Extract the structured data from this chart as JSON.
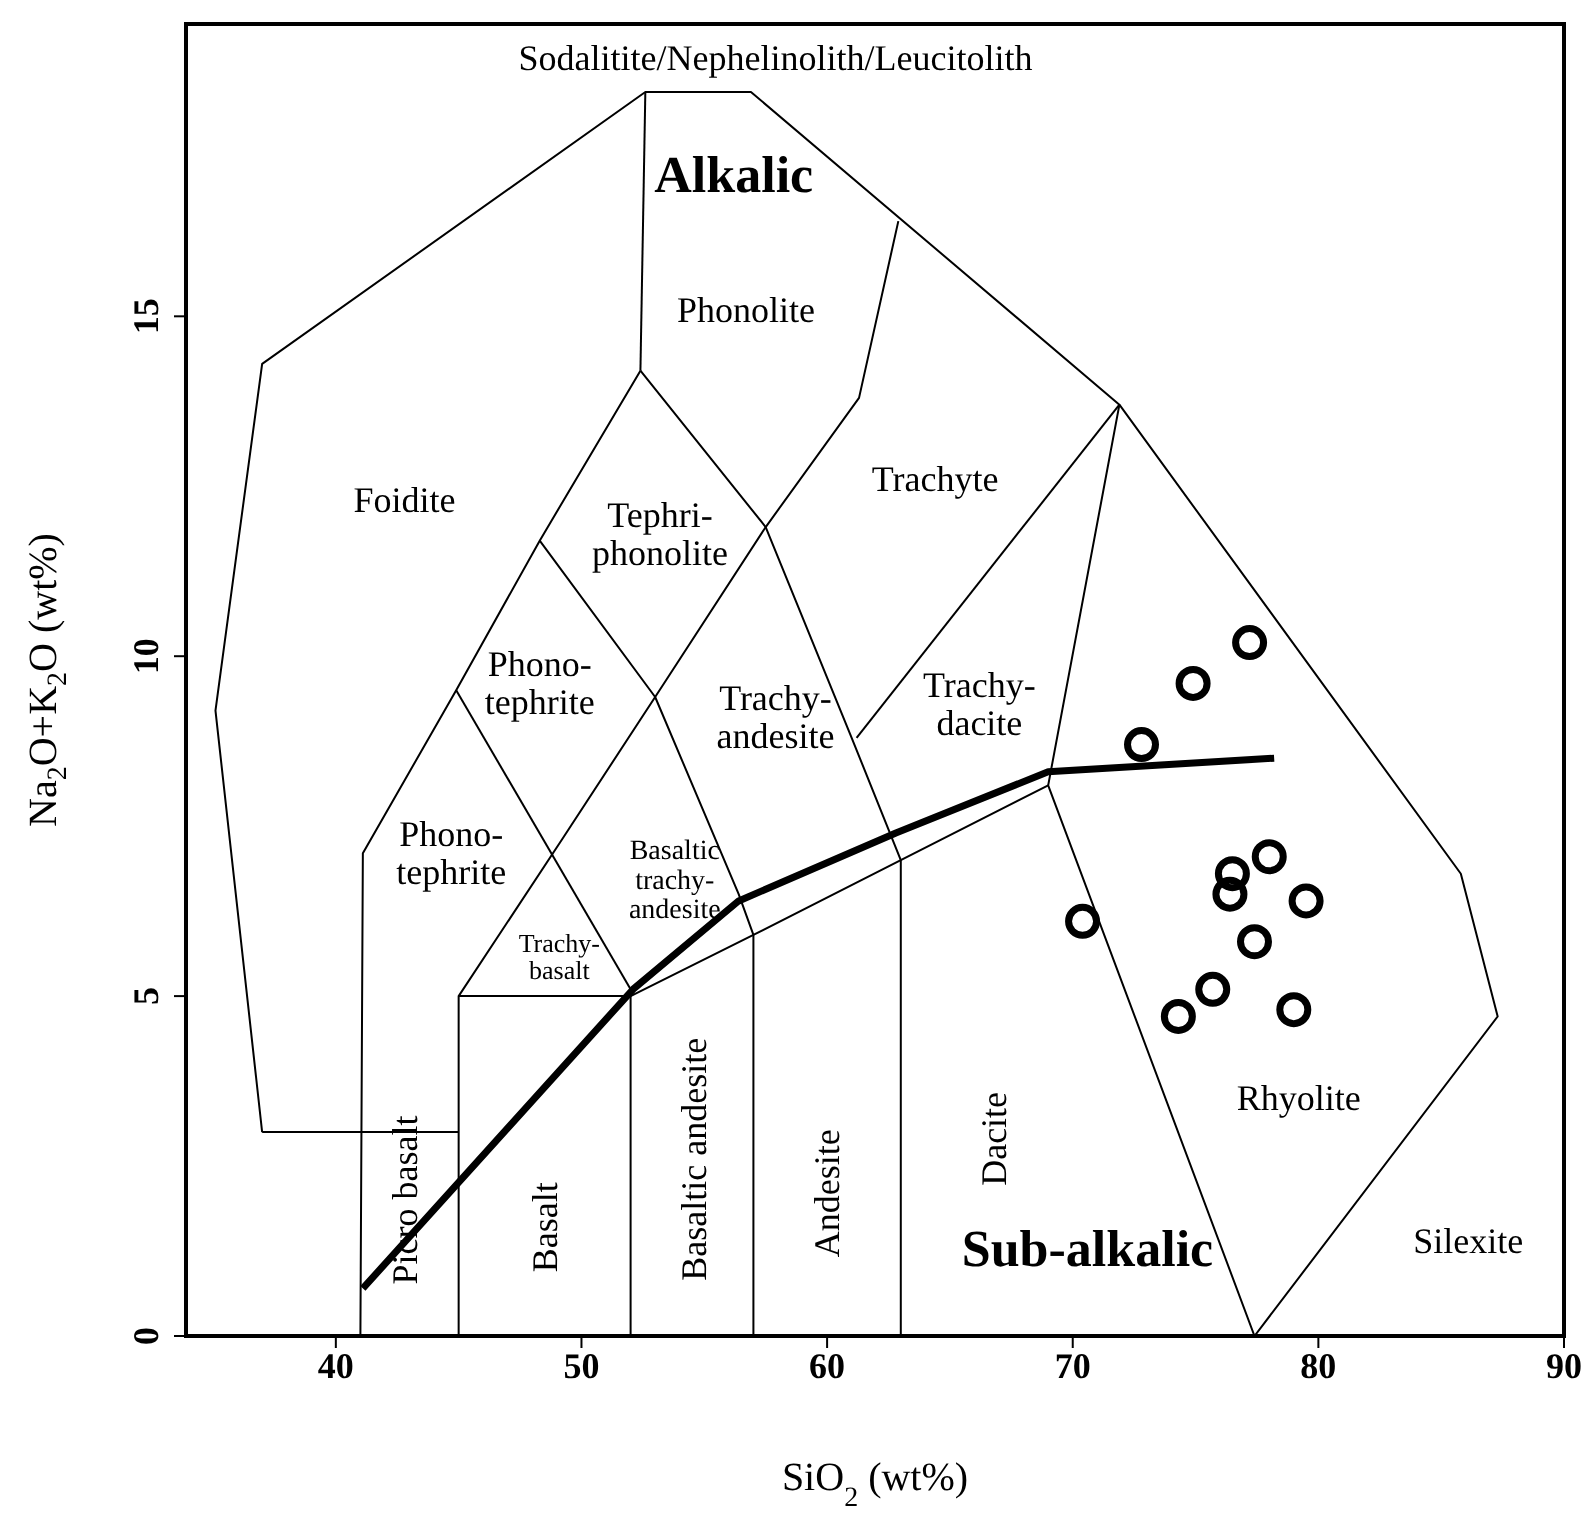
{
  "chart_data": {
    "type": "scatter",
    "xlabel": "SiO$_{2}$ (wt%)",
    "ylabel": "Na$_{2}$O+K$_{2}$O (wt%)",
    "xlim": [
      33.9,
      90
    ],
    "ylim": [
      0,
      19.3
    ],
    "xticks": [
      40,
      50,
      60,
      70,
      80,
      90
    ],
    "yticks": [
      0,
      5,
      10,
      15
    ],
    "grid": false,
    "legend": false,
    "series": [
      {
        "type": "line",
        "color": "#000000",
        "marker": "none",
        "x": [
          37,
          35.1,
          37,
          52.6,
          56.9,
          71.9,
          85.8,
          87.3,
          77.4
        ],
        "values": [
          3.0,
          9.2,
          14.3,
          18.3,
          18.3,
          13.7,
          6.8,
          4.7,
          0
        ]
      },
      {
        "type": "line",
        "color": "#000000",
        "marker": "none",
        "x": [
          37,
          45
        ],
        "values": [
          3.0,
          3.0
        ]
      },
      {
        "type": "line",
        "color": "#000000",
        "marker": "none",
        "x": [
          52.6,
          52.4
        ],
        "values": [
          18.3,
          14.2
        ]
      },
      {
        "type": "line",
        "color": "#000000",
        "marker": "none",
        "x": [
          62.9,
          61.3,
          57.5,
          53.0,
          49.2,
          45
        ],
        "values": [
          16.4,
          13.8,
          11.9,
          9.4,
          7.3,
          5.0
        ]
      },
      {
        "type": "line",
        "color": "#000000",
        "marker": "none",
        "x": [
          52.4,
          48.3,
          44.9,
          41.1,
          41
        ],
        "values": [
          14.2,
          11.7,
          9.5,
          7.1,
          0
        ]
      },
      {
        "type": "line",
        "color": "#000000",
        "marker": "none",
        "x": [
          52.4,
          57.5,
          61.0,
          63,
          63
        ],
        "values": [
          14.2,
          11.9,
          8.8,
          7.0,
          0
        ]
      },
      {
        "type": "line",
        "color": "#000000",
        "marker": "none",
        "x": [
          48.3,
          53.0,
          56.4,
          57,
          57
        ],
        "values": [
          11.7,
          9.4,
          6.5,
          5.9,
          0
        ]
      },
      {
        "type": "line",
        "color": "#000000",
        "marker": "none",
        "x": [
          44.9,
          52
        ],
        "values": [
          9.5,
          5.1
        ]
      },
      {
        "type": "line",
        "color": "#000000",
        "marker": "none",
        "x": [
          45,
          45,
          52,
          52
        ],
        "values": [
          0,
          5.0,
          5.0,
          0
        ]
      },
      {
        "type": "line",
        "color": "#000000",
        "marker": "none",
        "x": [
          52,
          57,
          63,
          69
        ],
        "values": [
          5.0,
          5.9,
          7.0,
          8.1
        ]
      },
      {
        "type": "line",
        "color": "#000000",
        "marker": "none",
        "x": [
          61.2,
          71.9
        ],
        "values": [
          8.8,
          13.7
        ]
      },
      {
        "type": "line",
        "color": "#000000",
        "marker": "none",
        "x": [
          71.9,
          69,
          77.4
        ],
        "values": [
          13.7,
          8.1,
          0
        ]
      },
      {
        "type": "line",
        "color": "#000000",
        "marker": "none",
        "x": [
          41.1,
          52.1,
          56.4,
          62.8,
          69.0,
          78.2
        ],
        "values": [
          0.7,
          5.1,
          6.4,
          7.4,
          8.3,
          8.5
        ]
      },
      {
        "color": "#000000",
        "marker": "circle",
        "x": [
          77.2,
          74.9,
          72.8,
          70.4,
          78.0,
          76.5,
          76.4,
          79.5,
          77.4,
          75.7,
          74.3,
          79.0
        ],
        "values": [
          10.2,
          9.6,
          8.7,
          6.1,
          7.05,
          6.8,
          6.5,
          6.4,
          5.8,
          5.1,
          4.7,
          4.8
        ]
      }
    ],
    "annotations": [
      "Sodalitite/Nephelinolith/Leucitolith",
      "Alkalic",
      "Phonolite",
      "Foidite",
      "Tephri-\nphonolite",
      "Trachyte",
      "Phono-\ntephrite",
      "Trachy-\nandesite",
      "Trachy-\ndacite",
      "Phono-\ntephrite",
      "Basaltic\ntrachy-\nandesite",
      "Trachy-\nbasalt",
      "Picro basalt",
      "Basalt",
      "Basaltic andesite",
      "Andesite",
      "Dacite",
      "Sub-alkalic",
      "Rhyolite",
      "Silexite"
    ]
  }
}
